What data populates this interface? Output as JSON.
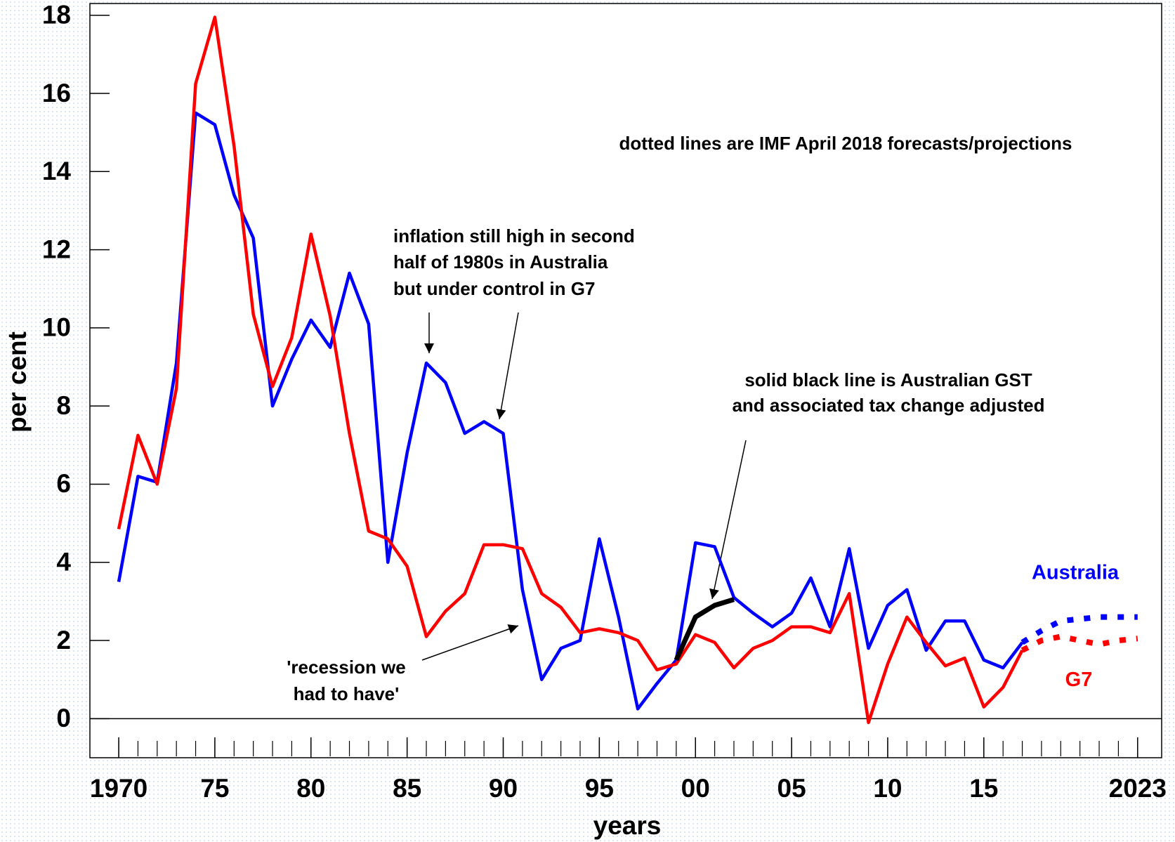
{
  "chart_data": {
    "type": "line",
    "xlabel": "years",
    "ylabel": "per cent",
    "x": [
      1970,
      1971,
      1972,
      1973,
      1974,
      1975,
      1976,
      1977,
      1978,
      1979,
      1980,
      1981,
      1982,
      1983,
      1984,
      1985,
      1986,
      1987,
      1988,
      1989,
      1990,
      1991,
      1992,
      1993,
      1994,
      1995,
      1996,
      1997,
      1998,
      1999,
      2000,
      2001,
      2002,
      2003,
      2004,
      2005,
      2006,
      2007,
      2008,
      2009,
      2010,
      2011,
      2012,
      2013,
      2014,
      2015,
      2016,
      2017,
      2018,
      2019,
      2020,
      2021,
      2022,
      2023
    ],
    "series": [
      {
        "name": "Australia",
        "color": "#0000ff",
        "values": [
          3.5,
          6.2,
          6.05,
          9.1,
          15.5,
          15.2,
          13.4,
          12.3,
          8.0,
          9.2,
          10.2,
          9.5,
          11.4,
          10.1,
          4.0,
          6.8,
          9.1,
          8.6,
          7.3,
          7.6,
          7.3,
          3.3,
          1.0,
          1.8,
          2.0,
          4.6,
          2.6,
          0.25,
          0.9,
          1.5,
          4.5,
          4.4,
          3.1,
          2.7,
          2.35,
          2.7,
          3.6,
          2.35,
          4.35,
          1.8,
          2.9,
          3.3,
          1.75,
          2.5,
          2.5,
          1.5,
          1.3,
          1.95,
          2.25,
          2.5,
          2.55,
          2.6,
          2.6,
          2.6
        ]
      },
      {
        "name": "G7",
        "color": "#ff0000",
        "values": [
          4.85,
          7.25,
          6.0,
          8.45,
          16.25,
          17.95,
          14.65,
          10.35,
          8.5,
          9.75,
          12.4,
          10.3,
          7.3,
          4.8,
          4.6,
          3.9,
          2.1,
          2.75,
          3.2,
          4.45,
          4.45,
          4.35,
          3.2,
          2.85,
          2.2,
          2.3,
          2.2,
          2.0,
          1.25,
          1.4,
          2.15,
          1.95,
          1.3,
          1.8,
          2.0,
          2.35,
          2.35,
          2.2,
          3.2,
          -0.1,
          1.4,
          2.6,
          1.95,
          1.35,
          1.55,
          0.3,
          0.8,
          1.75,
          2.0,
          2.1,
          2.0,
          1.9,
          2.0,
          2.05
        ]
      }
    ],
    "forecast_from": 2017,
    "gst_adjusted": {
      "color": "#000000",
      "x": [
        1999,
        2000,
        2001,
        2002
      ],
      "values": [
        1.5,
        2.6,
        2.9,
        3.05
      ]
    },
    "xlim": [
      1968.5,
      2024.25
    ],
    "ylim": [
      -1,
      18.3
    ],
    "xticks": [
      1970,
      {
        "value": 1975,
        "label": "75"
      },
      {
        "value": 1980,
        "label": "80"
      },
      {
        "value": 1985,
        "label": "85"
      },
      {
        "value": 1990,
        "label": "90"
      },
      {
        "value": 1995,
        "label": "95"
      },
      {
        "value": 2000,
        "label": "00"
      },
      {
        "value": 2005,
        "label": "05"
      },
      {
        "value": 2010,
        "label": "10"
      },
      {
        "value": 2015,
        "label": "15"
      },
      2023
    ],
    "yticks": [
      0,
      2,
      4,
      6,
      8,
      10,
      12,
      14,
      16,
      18
    ],
    "annotations": [
      {
        "lines": [
          "dotted lines are IMF April  2018 forecasts/projections"
        ]
      },
      {
        "lines": [
          "inflation still high in second",
          "half of 1980s in Australia",
          "but under control in G7"
        ]
      },
      {
        "lines": [
          "solid black line is Australian GST",
          "and associated tax change adjusted"
        ]
      },
      {
        "lines": [
          "'recession we",
          "had to have'"
        ]
      }
    ]
  }
}
